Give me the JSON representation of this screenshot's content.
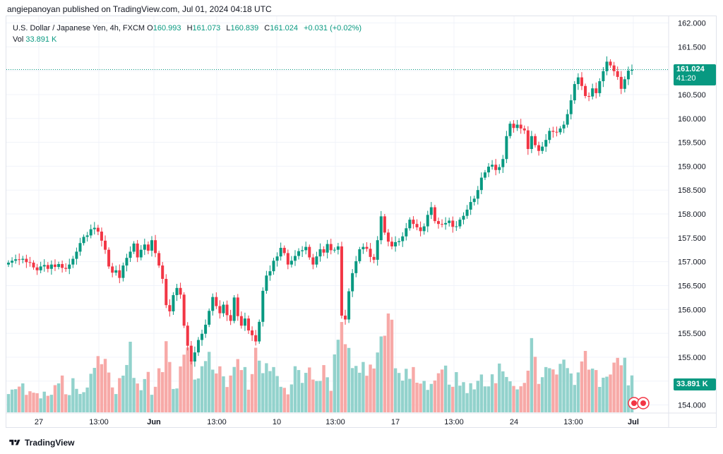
{
  "header": {
    "text": "angiepanoyan published on TradingView.com, Jul 01, 2024 04:18 UTC"
  },
  "legend": {
    "symbol": "U.S. Dollar / Japanese Yen, 4h, FXCM",
    "o_label": "O",
    "o_value": "160.993",
    "h_label": "H",
    "h_value": "161.073",
    "l_label": "L",
    "l_value": "160.839",
    "c_label": "C",
    "c_value": "161.024",
    "change": "+0.031 (+0.02%)",
    "vol_label": "Vol",
    "vol_value": "33.891 K"
  },
  "price_badge": {
    "price": "161.024",
    "countdown": "41:20"
  },
  "volume_badge": {
    "value": "33.891 K"
  },
  "footer": {
    "brand": "TradingView"
  },
  "colors": {
    "up": "#089981",
    "down": "#f23645",
    "up_vol": "#92d2cc",
    "down_vol": "#f7a9a7",
    "grid": "#f0f3fa"
  },
  "chart_data": {
    "type": "candlestick",
    "title": "U.S. Dollar / Japanese Yen, 4h, FXCM",
    "y_ticks": [
      "162.000",
      "161.500",
      "161.000",
      "160.500",
      "160.000",
      "159.500",
      "159.000",
      "158.500",
      "158.000",
      "157.500",
      "157.000",
      "156.500",
      "156.000",
      "155.500",
      "155.000",
      "154.500",
      "154.000"
    ],
    "ylim": [
      153.95,
      162.05
    ],
    "x_ticks": [
      "27",
      "13:00",
      "Jun",
      "13:00",
      "10",
      "13:00",
      "17",
      "13:00",
      "24",
      "13:00",
      "Jul"
    ],
    "last_price": 161.024,
    "close_series": [
      156.98,
      157.02,
      157.05,
      157.04,
      157.06,
      156.99,
      156.98,
      156.88,
      156.82,
      156.9,
      156.93,
      156.85,
      156.94,
      156.89,
      156.95,
      156.87,
      156.85,
      156.94,
      157.06,
      157.21,
      157.39,
      157.52,
      157.55,
      157.68,
      157.71,
      157.63,
      157.44,
      157.25,
      156.9,
      156.77,
      156.82,
      156.66,
      156.92,
      157.08,
      157.21,
      157.38,
      157.09,
      157.25,
      157.36,
      157.23,
      157.45,
      157.18,
      156.92,
      156.64,
      156.09,
      155.96,
      156.3,
      156.45,
      156.31,
      155.66,
      155.24,
      154.91,
      155.1,
      155.36,
      155.49,
      155.68,
      155.97,
      156.26,
      156.07,
      155.92,
      156.1,
      155.88,
      155.76,
      156.25,
      155.86,
      155.66,
      155.81,
      155.56,
      155.46,
      155.33,
      155.74,
      156.39,
      156.71,
      156.8,
      157.02,
      157.11,
      157.29,
      157.18,
      156.94,
      157.02,
      157.12,
      157.22,
      157.24,
      157.31,
      157.09,
      156.94,
      157.11,
      157.26,
      157.19,
      157.37,
      157.24,
      157.25,
      157.32,
      155.87,
      155.79,
      156.38,
      156.76,
      157.01,
      157.26,
      157.31,
      157.27,
      157.1,
      157.04,
      157.45,
      157.95,
      157.61,
      157.42,
      157.32,
      157.41,
      157.43,
      157.53,
      157.7,
      157.88,
      157.79,
      157.72,
      157.64,
      157.74,
      157.98,
      158.14,
      157.85,
      157.79,
      157.78,
      157.81,
      157.86,
      157.73,
      157.74,
      157.88,
      157.96,
      158.09,
      158.25,
      158.32,
      158.5,
      158.76,
      158.87,
      158.99,
      159.03,
      158.92,
      158.98,
      159.15,
      159.63,
      159.89,
      159.8,
      159.87,
      159.79,
      159.75,
      159.36,
      159.63,
      159.44,
      159.32,
      159.41,
      159.55,
      159.74,
      159.72,
      159.71,
      159.79,
      159.87,
      160.09,
      160.38,
      160.72,
      160.86,
      160.68,
      160.47,
      160.46,
      160.63,
      160.53,
      160.78,
      160.99,
      161.19,
      161.11,
      160.99,
      160.87,
      160.62,
      160.82,
      161.0,
      161.02
    ],
    "volume_series_k": [
      17.7,
      22.0,
      22.4,
      24.9,
      28.0,
      16.9,
      20.4,
      19.0,
      18.5,
      13.5,
      20.0,
      16.0,
      17.0,
      26.3,
      28.0,
      35.6,
      17.5,
      16.7,
      33.0,
      22.7,
      17.8,
      19.5,
      24.0,
      37.3,
      43.0,
      54.4,
      46.6,
      51.7,
      38.5,
      24.1,
      17.7,
      33.1,
      35.5,
      45.8,
      68.3,
      33.3,
      27.9,
      21.4,
      32.2,
      39.1,
      17.0,
      24.7,
      42.6,
      38.9,
      68.8,
      48.7,
      22.6,
      23.1,
      44.4,
      55.8,
      62.7,
      50.6,
      31.7,
      32.8,
      44.6,
      49.6,
      58.5,
      41.3,
      37.6,
      44.5,
      34.8,
      24.5,
      35.6,
      43.9,
      51.5,
      40.9,
      43.8,
      21.9,
      37.0,
      62.5,
      50.0,
      37.9,
      47.5,
      39.9,
      43.8,
      35.1,
      24.7,
      23.7,
      17.4,
      27.0,
      44.6,
      40.9,
      28.5,
      38.2,
      43.4,
      31.7,
      30.3,
      30.4,
      45.7,
      33.9,
      20.8,
      56.0,
      70.2,
      87.4,
      65.9,
      62.3,
      42.8,
      44.9,
      38.3,
      48.7,
      35.4,
      46.2,
      42.4,
      57.9,
      73.4,
      74.1,
      95.6,
      89.6,
      42.6,
      38.1,
      30.7,
      42.1,
      32.4,
      43.8,
      28.7,
      27.8,
      30.4,
      21.7,
      27.5,
      30.8,
      37.8,
      41.4,
      45.2,
      26.8,
      24.7,
      38.9,
      25.8,
      29.2,
      18.6,
      28.2,
      22.2,
      30.5,
      36.6,
      25.1,
      25.1,
      36.8,
      28.2,
      47.2,
      39.6,
      34.2,
      30.0,
      25.5,
      22.2,
      25.2,
      28.5,
      40.3,
      71.8,
      53.7,
      27.5,
      34.0,
      43.8,
      42.7,
      41.5,
      36.6,
      46.9,
      51.0,
      42.8,
      37.6,
      26.5,
      38.6,
      49.2,
      59.4,
      41.3,
      42.3,
      40.9,
      24.6,
      33.5,
      34.5,
      36.6,
      48.1,
      52.7,
      45.5,
      52.8,
      26.1,
      35.7,
      44.8,
      33.9
    ]
  }
}
